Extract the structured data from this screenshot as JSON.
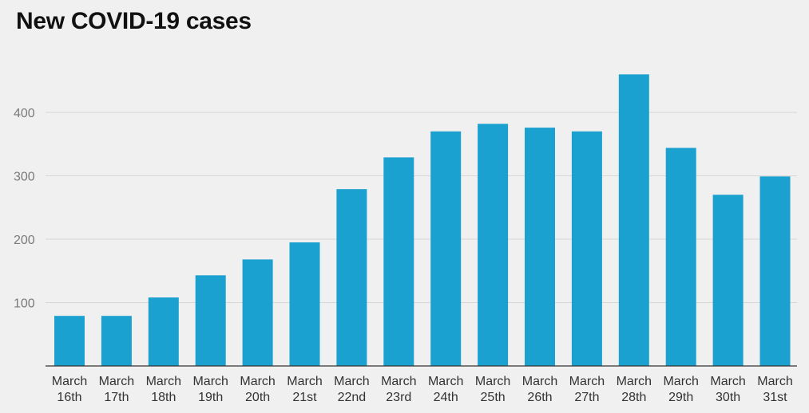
{
  "chart_data": {
    "type": "bar",
    "title": "New COVID-19 cases",
    "xlabel": "",
    "ylabel": "",
    "ylim": [
      0,
      450
    ],
    "yticks": [
      100,
      200,
      300,
      400
    ],
    "grid": true,
    "bar_color": "#1ba1d0",
    "categories": [
      [
        "March",
        "16th"
      ],
      [
        "March",
        "17th"
      ],
      [
        "March",
        "18th"
      ],
      [
        "March",
        "19th"
      ],
      [
        "March",
        "20th"
      ],
      [
        "March",
        "21st"
      ],
      [
        "March",
        "22nd"
      ],
      [
        "March",
        "23rd"
      ],
      [
        "March",
        "24th"
      ],
      [
        "March",
        "25th"
      ],
      [
        "March",
        "26th"
      ],
      [
        "March",
        "27th"
      ],
      [
        "March",
        "28th"
      ],
      [
        "March",
        "29th"
      ],
      [
        "March",
        "30th"
      ],
      [
        "March",
        "31st"
      ]
    ],
    "values": [
      79,
      79,
      108,
      143,
      168,
      195,
      279,
      329,
      370,
      382,
      376,
      370,
      460,
      344,
      270,
      299
    ]
  }
}
